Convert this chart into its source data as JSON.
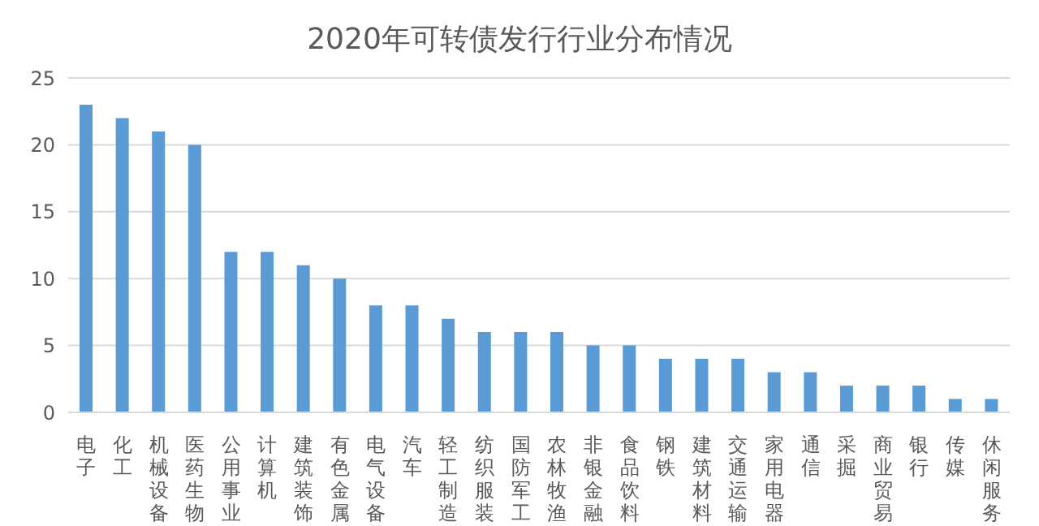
{
  "chart_data": {
    "type": "bar",
    "title": "2020年可转债发行行业分布情况",
    "categories": [
      "电子",
      "化工",
      "机械设备",
      "医药生物",
      "公用事业",
      "计算机",
      "建筑装饰",
      "有色金属",
      "电气设备",
      "汽车",
      "轻工制造",
      "纺织服装",
      "国防军工",
      "农林牧渔",
      "非银金融",
      "食品饮料",
      "钢铁",
      "建筑材料",
      "交通运输",
      "家用电器",
      "通信",
      "采掘",
      "商业贸易",
      "银行",
      "传媒",
      "休闲服务"
    ],
    "values": [
      23,
      22,
      21,
      20,
      12,
      12,
      11,
      10,
      8,
      8,
      7,
      6,
      6,
      6,
      5,
      5,
      4,
      4,
      4,
      3,
      3,
      2,
      2,
      2,
      1,
      1
    ],
    "color": "#5b9bd5",
    "ylim": [
      0,
      25
    ],
    "yticks": [
      0,
      5,
      10,
      15,
      20,
      25
    ],
    "grid": "y",
    "legend": false
  }
}
